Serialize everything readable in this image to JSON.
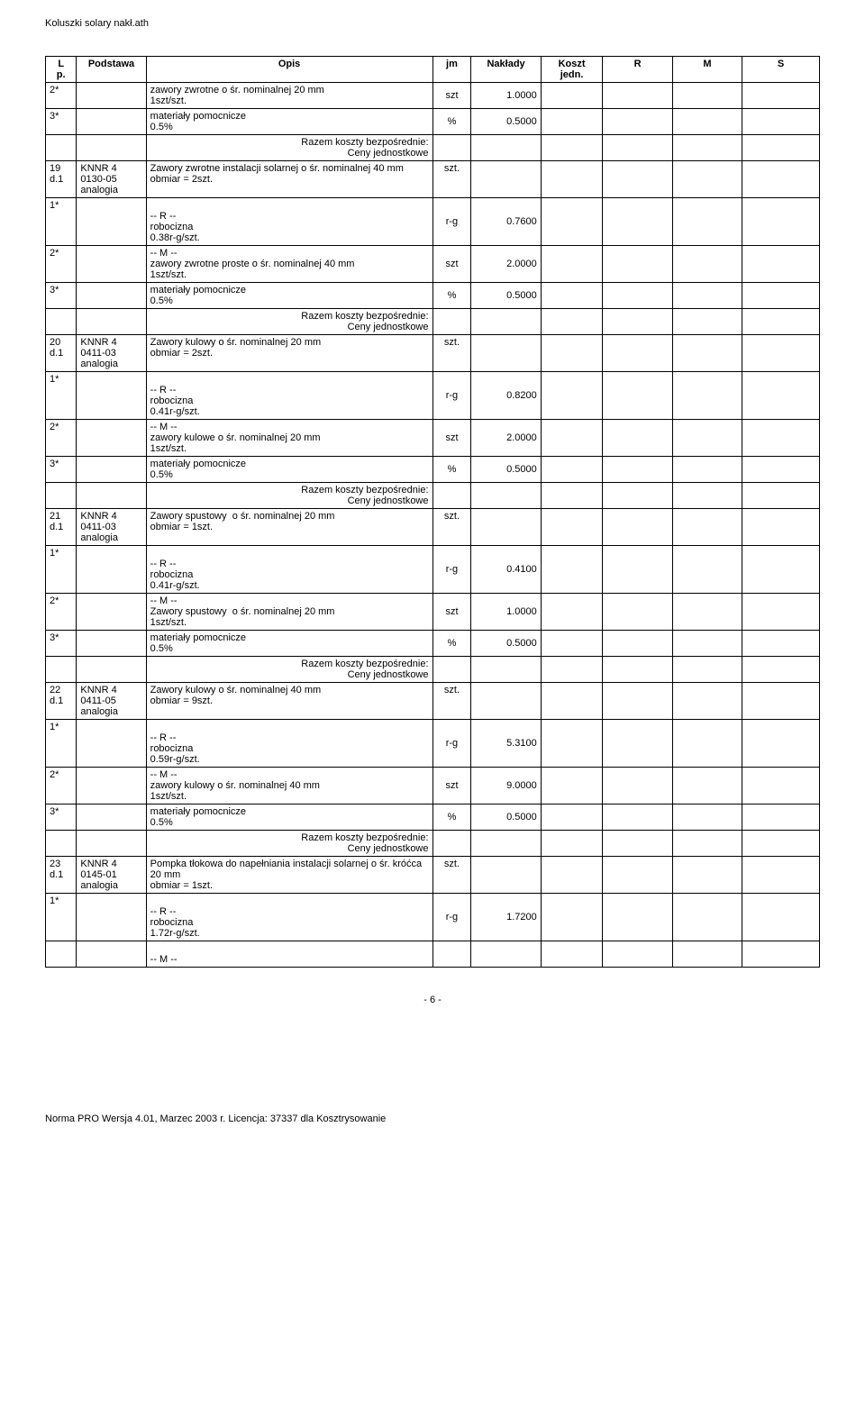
{
  "doc_header": "Koluszki solary nakł.ath",
  "page_number_label": "- 6 -",
  "footer_license": "Norma PRO Wersja 4.01, Marzec 2003 r. Licencja: 37337 dla Kosztrysowanie",
  "columns": [
    {
      "key": "lp",
      "label": "L\np."
    },
    {
      "key": "pod",
      "label": "Podstawa"
    },
    {
      "key": "opis",
      "label": "Opis"
    },
    {
      "key": "jm",
      "label": "jm"
    },
    {
      "key": "nak",
      "label": "Nakłady"
    },
    {
      "key": "koszt",
      "label": "Koszt\njedn."
    },
    {
      "key": "r",
      "label": "R"
    },
    {
      "key": "m",
      "label": "M"
    },
    {
      "key": "s",
      "label": "S"
    }
  ],
  "razem_text": "Razem koszty bezpośrednie:\nCeny jednostkowe",
  "rows": [
    {
      "t": "line",
      "lp": "2*",
      "pod": "",
      "opis": "zawory zwrotne o śr. nominalnej 20 mm\n1szt/szt.",
      "jm": "szt",
      "nak": "1.0000"
    },
    {
      "t": "line",
      "lp": "3*",
      "pod": "",
      "opis": "materiały pomocnicze\n0.5%",
      "jm": "%",
      "nak": "0.5000"
    },
    {
      "t": "razem"
    },
    {
      "t": "item",
      "lp": "19\nd.1",
      "pod": "KNNR 4\n0130-05\nanalogia",
      "opis": "Zawory zwrotne instalacji solarnej o śr. nominalnej 40 mm\nobmiar = 2szt.",
      "jm": "szt.",
      "nak": ""
    },
    {
      "t": "sub",
      "lp": "1*",
      "opis": "-- R --\nrobocizna\n0.38r-g/szt.",
      "jm": "r-g",
      "nak": "0.7600"
    },
    {
      "t": "line",
      "lp": "2*",
      "pod": "",
      "opis": "-- M --\nzawory zwrotne proste o śr. nominalnej 40 mm\n1szt/szt.",
      "jm": "szt",
      "nak": "2.0000"
    },
    {
      "t": "line",
      "lp": "3*",
      "pod": "",
      "opis": "materiały pomocnicze\n0.5%",
      "jm": "%",
      "nak": "0.5000"
    },
    {
      "t": "razem"
    },
    {
      "t": "item",
      "lp": "20\nd.1",
      "pod": "KNNR 4\n0411-03\nanalogia",
      "opis": "Zawory kulowy o śr. nominalnej 20 mm\nobmiar = 2szt.",
      "jm": "szt.",
      "nak": ""
    },
    {
      "t": "sub",
      "lp": "1*",
      "opis": "-- R --\nrobocizna\n0.41r-g/szt.",
      "jm": "r-g",
      "nak": "0.8200"
    },
    {
      "t": "line",
      "lp": "2*",
      "pod": "",
      "opis": "-- M --\nzawory kulowe o śr. nominalnej 20 mm\n1szt/szt.",
      "jm": "szt",
      "nak": "2.0000"
    },
    {
      "t": "line",
      "lp": "3*",
      "pod": "",
      "opis": "materiały pomocnicze\n0.5%",
      "jm": "%",
      "nak": "0.5000"
    },
    {
      "t": "razem"
    },
    {
      "t": "item",
      "lp": "21\nd.1",
      "pod": "KNNR 4\n0411-03\nanalogia",
      "opis": "Zawory spustowy  o śr. nominalnej 20 mm\nobmiar = 1szt.",
      "jm": "szt.",
      "nak": ""
    },
    {
      "t": "sub",
      "lp": "1*",
      "opis": "-- R --\nrobocizna\n0.41r-g/szt.",
      "jm": "r-g",
      "nak": "0.4100"
    },
    {
      "t": "line",
      "lp": "2*",
      "pod": "",
      "opis": "-- M --\nZawory spustowy  o śr. nominalnej 20 mm\n1szt/szt.",
      "jm": "szt",
      "nak": "1.0000"
    },
    {
      "t": "line",
      "lp": "3*",
      "pod": "",
      "opis": "materiały pomocnicze\n0.5%",
      "jm": "%",
      "nak": "0.5000"
    },
    {
      "t": "razem"
    },
    {
      "t": "item",
      "lp": "22\nd.1",
      "pod": "KNNR 4\n0411-05\nanalogia",
      "opis": "Zawory kulowy o śr. nominalnej 40 mm\nobmiar = 9szt.",
      "jm": "szt.",
      "nak": ""
    },
    {
      "t": "sub",
      "lp": "1*",
      "opis": "-- R --\nrobocizna\n0.59r-g/szt.",
      "jm": "r-g",
      "nak": "5.3100"
    },
    {
      "t": "line",
      "lp": "2*",
      "pod": "",
      "opis": "-- M --\nzawory kulowy o śr. nominalnej 40 mm\n1szt/szt.",
      "jm": "szt",
      "nak": "9.0000"
    },
    {
      "t": "line",
      "lp": "3*",
      "pod": "",
      "opis": "materiały pomocnicze\n0.5%",
      "jm": "%",
      "nak": "0.5000"
    },
    {
      "t": "razem"
    },
    {
      "t": "item",
      "lp": "23\nd.1",
      "pod": "KNNR 4\n0145-01\nanalogia",
      "opis": "Pompka tłokowa do napełniania instalacji solarnej o śr. króćca 20 mm\nobmiar = 1szt.",
      "jm": "szt.",
      "nak": ""
    },
    {
      "t": "sub",
      "lp": "1*",
      "opis": "-- R --\nrobocizna\n1.72r-g/szt.",
      "jm": "r-g",
      "nak": "1.7200"
    },
    {
      "t": "tail",
      "opis": "-- M --"
    }
  ]
}
